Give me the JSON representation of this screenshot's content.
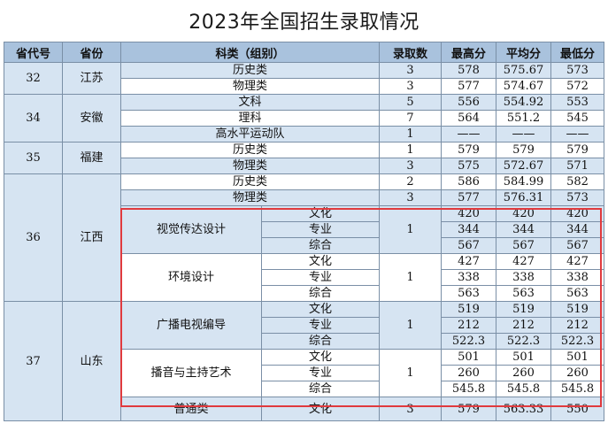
{
  "title": "2023年全国招生录取情况",
  "headers": {
    "code": "省代号",
    "province": "省份",
    "category": "科类（组别）",
    "count": "录取数",
    "max": "最高分",
    "avg": "平均分",
    "min": "最低分"
  },
  "provinces": [
    {
      "code": "32",
      "name": "江苏"
    },
    {
      "code": "34",
      "name": "安徽"
    },
    {
      "code": "35",
      "name": "福建"
    },
    {
      "code": "36",
      "name": "江西"
    },
    {
      "code": "37",
      "name": "山东"
    }
  ],
  "rows": {
    "r1": {
      "cat": "历史类",
      "count": "3",
      "max": "578",
      "avg": "575.67",
      "min": "573"
    },
    "r2": {
      "cat": "物理类",
      "count": "3",
      "max": "577",
      "avg": "574.67",
      "min": "572"
    },
    "r3": {
      "cat": "文科",
      "count": "5",
      "max": "556",
      "avg": "554.92",
      "min": "553"
    },
    "r4": {
      "cat": "理科",
      "count": "7",
      "max": "564",
      "avg": "551.2",
      "min": "545"
    },
    "r5": {
      "cat": "高水平运动队",
      "count": "1",
      "max": "——",
      "avg": "——",
      "min": "——"
    },
    "r6": {
      "cat": "历史类",
      "count": "1",
      "max": "579",
      "avg": "579",
      "min": "579"
    },
    "r7": {
      "cat": "物理类",
      "count": "3",
      "max": "575",
      "avg": "572.67",
      "min": "571"
    },
    "r8": {
      "cat": "历史类",
      "count": "2",
      "max": "586",
      "avg": "584.99",
      "min": "582"
    },
    "r9": {
      "cat": "物理类",
      "count": "3",
      "max": "577",
      "avg": "576.31",
      "min": "573"
    },
    "last": {
      "cat": "普通类",
      "sub": "文化",
      "count": "3",
      "max": "579",
      "avg": "563.33",
      "min": "550"
    }
  },
  "art_groups": [
    {
      "name": "视觉传达设计",
      "count": "1",
      "subs": [
        {
          "label": "文化",
          "max": "420",
          "avg": "420",
          "min": "420"
        },
        {
          "label": "专业",
          "max": "344",
          "avg": "344",
          "min": "344"
        },
        {
          "label": "综合",
          "max": "567",
          "avg": "567",
          "min": "567"
        }
      ]
    },
    {
      "name": "环境设计",
      "count": "1",
      "subs": [
        {
          "label": "文化",
          "max": "427",
          "avg": "427",
          "min": "427"
        },
        {
          "label": "专业",
          "max": "338",
          "avg": "338",
          "min": "338"
        },
        {
          "label": "综合",
          "max": "563",
          "avg": "563",
          "min": "563"
        }
      ]
    },
    {
      "name": "广播电视编导",
      "count": "1",
      "subs": [
        {
          "label": "文化",
          "max": "519",
          "avg": "519",
          "min": "519"
        },
        {
          "label": "专业",
          "max": "212",
          "avg": "212",
          "min": "212"
        },
        {
          "label": "综合",
          "max": "522.3",
          "avg": "522.3",
          "min": "522.3"
        }
      ]
    },
    {
      "name": "播音与主持艺术",
      "count": "1",
      "subs": [
        {
          "label": "文化",
          "max": "501",
          "avg": "501",
          "min": "501"
        },
        {
          "label": "专业",
          "max": "260",
          "avg": "260",
          "min": "260"
        },
        {
          "label": "综合",
          "max": "545.8",
          "avg": "545.8",
          "min": "545.8"
        }
      ]
    }
  ],
  "colors": {
    "header_bg": "#a9c2dd",
    "row_blue": "#d6e4f2",
    "highlight": "#e03a3e"
  }
}
